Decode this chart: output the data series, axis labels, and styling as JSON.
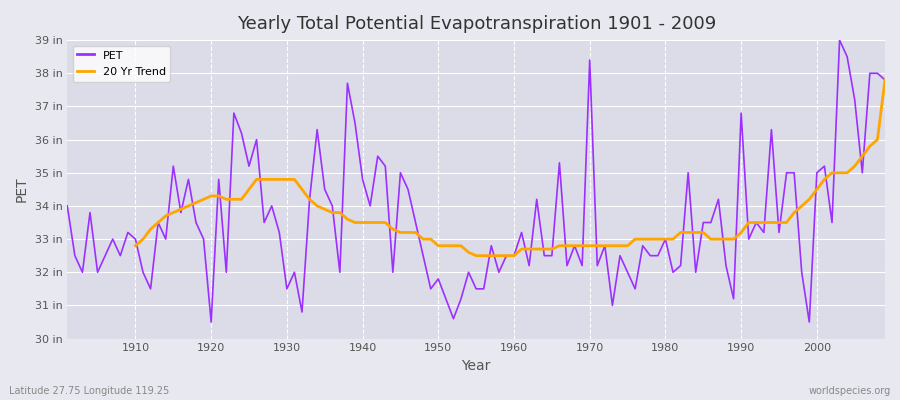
{
  "title": "Yearly Total Potential Evapotranspiration 1901 - 2009",
  "xlabel": "Year",
  "ylabel": "PET",
  "subtitle_left": "Latitude 27.75 Longitude 119.25",
  "subtitle_right": "worldspecies.org",
  "ylim": [
    30,
    39
  ],
  "xlim": [
    1901,
    2009
  ],
  "ytick_labels": [
    "30 in",
    "31 in",
    "32 in",
    "33 in",
    "34 in",
    "35 in",
    "36 in",
    "37 in",
    "38 in",
    "39 in"
  ],
  "ytick_values": [
    30,
    31,
    32,
    33,
    34,
    35,
    36,
    37,
    38,
    39
  ],
  "xtick_values": [
    1910,
    1920,
    1930,
    1940,
    1950,
    1960,
    1970,
    1980,
    1990,
    2000
  ],
  "pet_color": "#9B30FF",
  "trend_color": "#FFA500",
  "bg_color": "#E8E8F0",
  "plot_bg_color": "#DCDCE8",
  "grid_color": "#FFFFFF",
  "pet_years": [
    1901,
    1902,
    1903,
    1904,
    1905,
    1906,
    1907,
    1908,
    1909,
    1910,
    1911,
    1912,
    1913,
    1914,
    1915,
    1916,
    1917,
    1918,
    1919,
    1920,
    1921,
    1922,
    1923,
    1924,
    1925,
    1926,
    1927,
    1928,
    1929,
    1930,
    1931,
    1932,
    1933,
    1934,
    1935,
    1936,
    1937,
    1938,
    1939,
    1940,
    1941,
    1942,
    1943,
    1944,
    1945,
    1946,
    1947,
    1948,
    1949,
    1950,
    1951,
    1952,
    1953,
    1954,
    1955,
    1956,
    1957,
    1958,
    1959,
    1960,
    1961,
    1962,
    1963,
    1964,
    1965,
    1966,
    1967,
    1968,
    1969,
    1970,
    1971,
    1972,
    1973,
    1974,
    1975,
    1976,
    1977,
    1978,
    1979,
    1980,
    1981,
    1982,
    1983,
    1984,
    1985,
    1986,
    1987,
    1988,
    1989,
    1990,
    1991,
    1992,
    1993,
    1994,
    1995,
    1996,
    1997,
    1998,
    1999,
    2000,
    2001,
    2002,
    2003,
    2004,
    2005,
    2006,
    2007,
    2008,
    2009
  ],
  "pet_values": [
    34.0,
    32.5,
    32.0,
    33.8,
    32.0,
    32.5,
    33.0,
    32.5,
    33.2,
    33.0,
    32.0,
    31.5,
    33.5,
    33.0,
    35.2,
    33.8,
    34.8,
    33.5,
    33.0,
    30.5,
    34.8,
    32.0,
    36.8,
    36.2,
    35.2,
    36.0,
    33.5,
    34.0,
    33.2,
    31.5,
    32.0,
    30.8,
    34.2,
    36.3,
    34.5,
    34.0,
    32.0,
    37.7,
    36.5,
    34.8,
    34.0,
    35.5,
    35.2,
    32.0,
    35.0,
    34.5,
    33.5,
    32.5,
    31.5,
    31.8,
    31.2,
    30.6,
    31.2,
    32.0,
    31.5,
    31.5,
    32.8,
    32.0,
    32.5,
    32.5,
    33.2,
    32.2,
    34.2,
    32.5,
    32.5,
    35.3,
    32.2,
    32.8,
    32.2,
    38.4,
    32.2,
    32.8,
    31.0,
    32.5,
    32.0,
    31.5,
    32.8,
    32.5,
    32.5,
    33.0,
    32.0,
    32.2,
    35.0,
    32.0,
    33.5,
    33.5,
    34.2,
    32.2,
    31.2,
    36.8,
    33.0,
    33.5,
    33.2,
    36.3,
    33.2,
    35.0,
    35.0,
    32.0,
    30.5,
    35.0,
    35.2,
    33.5,
    39.0,
    38.5,
    37.2,
    35.0,
    38.0,
    38.0,
    37.8
  ],
  "trend_years": [
    1910,
    1911,
    1912,
    1913,
    1914,
    1915,
    1916,
    1917,
    1918,
    1919,
    1920,
    1921,
    1922,
    1923,
    1924,
    1925,
    1926,
    1927,
    1928,
    1929,
    1930,
    1931,
    1932,
    1933,
    1934,
    1935,
    1936,
    1937,
    1938,
    1939,
    1940,
    1941,
    1942,
    1943,
    1944,
    1945,
    1946,
    1947,
    1948,
    1949,
    1950,
    1951,
    1952,
    1953,
    1954,
    1955,
    1956,
    1957,
    1958,
    1959,
    1960,
    1961,
    1962,
    1963,
    1964,
    1965,
    1966,
    1967,
    1968,
    1969,
    1970,
    1971,
    1972,
    1973,
    1974,
    1975,
    1976,
    1977,
    1978,
    1979,
    1980,
    1981,
    1982,
    1983,
    1984,
    1985,
    1986,
    1987,
    1988,
    1989,
    1990,
    1991,
    1992,
    1993,
    1994,
    1995,
    1996,
    1997,
    1998,
    1999,
    2000,
    2001,
    2002,
    2003,
    2004,
    2005,
    2006,
    2007,
    2008,
    2009
  ],
  "trend_values": [
    32.8,
    33.0,
    33.3,
    33.5,
    33.7,
    33.8,
    33.9,
    34.0,
    34.1,
    34.2,
    34.3,
    34.3,
    34.2,
    34.2,
    34.2,
    34.5,
    34.8,
    34.8,
    34.8,
    34.8,
    34.8,
    34.8,
    34.5,
    34.2,
    34.0,
    33.9,
    33.8,
    33.8,
    33.6,
    33.5,
    33.5,
    33.5,
    33.5,
    33.5,
    33.3,
    33.2,
    33.2,
    33.2,
    33.0,
    33.0,
    32.8,
    32.8,
    32.8,
    32.8,
    32.6,
    32.5,
    32.5,
    32.5,
    32.5,
    32.5,
    32.5,
    32.7,
    32.7,
    32.7,
    32.7,
    32.7,
    32.8,
    32.8,
    32.8,
    32.8,
    32.8,
    32.8,
    32.8,
    32.8,
    32.8,
    32.8,
    33.0,
    33.0,
    33.0,
    33.0,
    33.0,
    33.0,
    33.2,
    33.2,
    33.2,
    33.2,
    33.0,
    33.0,
    33.0,
    33.0,
    33.2,
    33.5,
    33.5,
    33.5,
    33.5,
    33.5,
    33.5,
    33.8,
    34.0,
    34.2,
    34.5,
    34.8,
    35.0,
    35.0,
    35.0,
    35.2,
    35.5,
    35.8,
    36.0,
    37.8
  ]
}
